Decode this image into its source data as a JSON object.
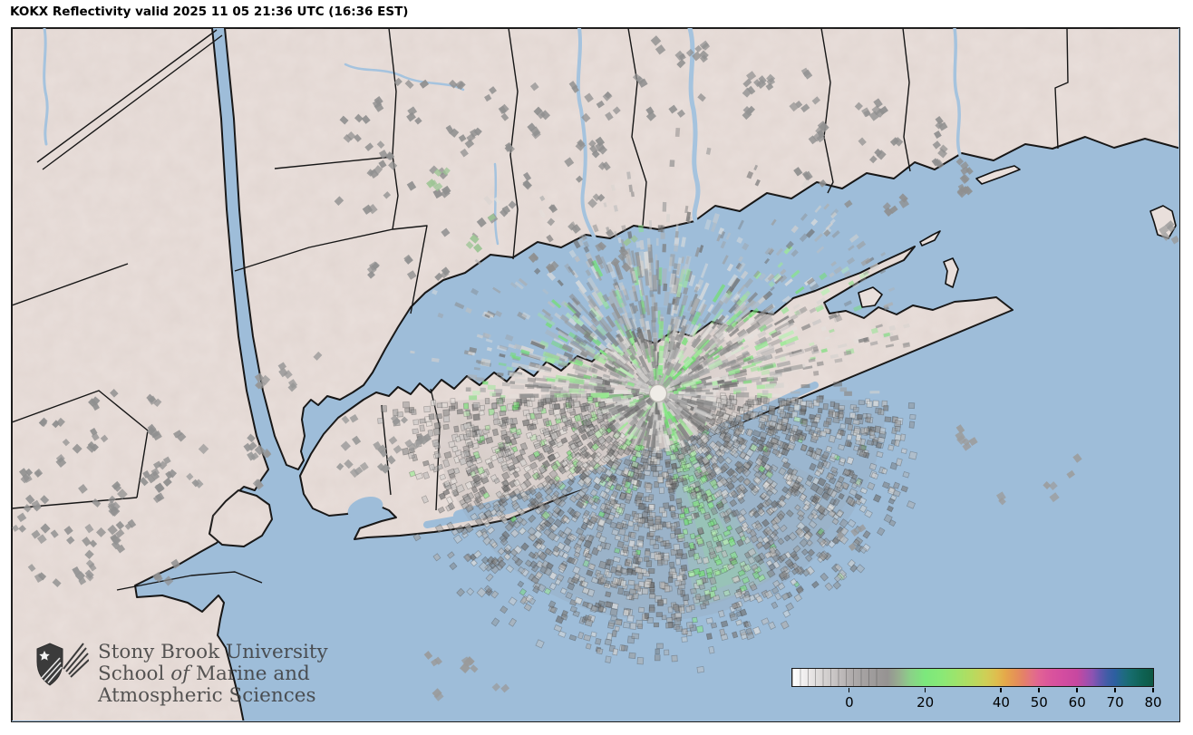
{
  "header": {
    "title": "KOKX Reflectivity valid 2025 11 05 21:36 UTC (16:36 EST)"
  },
  "branding": {
    "line1": "Stony Brook University",
    "line2_prefix": "School ",
    "line2_italic": "of",
    "line2_suffix": " Marine and",
    "line3": "Atmospheric Sciences"
  },
  "colorbar": {
    "min": -15,
    "max": 80,
    "ticks": [
      {
        "value": 0,
        "label": "0"
      },
      {
        "value": 20,
        "label": "20"
      },
      {
        "value": 40,
        "label": "40"
      },
      {
        "value": 50,
        "label": "50"
      },
      {
        "value": 60,
        "label": "60"
      },
      {
        "value": 70,
        "label": "70"
      },
      {
        "value": 80,
        "label": "80"
      }
    ],
    "stops": [
      {
        "value": -15,
        "color": "#ffffff"
      },
      {
        "value": -11,
        "color": "#eceaea"
      },
      {
        "value": -7,
        "color": "#d8d5d4"
      },
      {
        "value": -3,
        "color": "#c3bfbf"
      },
      {
        "value": 0,
        "color": "#b2aeae"
      },
      {
        "value": 5,
        "color": "#a19e9e"
      },
      {
        "value": 10,
        "color": "#969392"
      },
      {
        "value": 13,
        "color": "#97ad90"
      },
      {
        "value": 16,
        "color": "#8bd088"
      },
      {
        "value": 20,
        "color": "#7ce87c"
      },
      {
        "value": 24,
        "color": "#88e977"
      },
      {
        "value": 28,
        "color": "#9ce46c"
      },
      {
        "value": 32,
        "color": "#b4dc60"
      },
      {
        "value": 36,
        "color": "#cfcf56"
      },
      {
        "value": 39,
        "color": "#e0bc4e"
      },
      {
        "value": 41,
        "color": "#e5a94a"
      },
      {
        "value": 44,
        "color": "#e59058"
      },
      {
        "value": 46,
        "color": "#e48069"
      },
      {
        "value": 48,
        "color": "#e37283"
      },
      {
        "value": 50,
        "color": "#e16394"
      },
      {
        "value": 53,
        "color": "#da549c"
      },
      {
        "value": 56,
        "color": "#d44da0"
      },
      {
        "value": 60,
        "color": "#c748a0"
      },
      {
        "value": 62,
        "color": "#ab4daa"
      },
      {
        "value": 64,
        "color": "#8d53b2"
      },
      {
        "value": 66,
        "color": "#6157ae"
      },
      {
        "value": 68,
        "color": "#3f5da6"
      },
      {
        "value": 70,
        "color": "#2c5fa0"
      },
      {
        "value": 72,
        "color": "#206a84"
      },
      {
        "value": 74,
        "color": "#176c6e"
      },
      {
        "value": 77,
        "color": "#0f6355"
      },
      {
        "value": 80,
        "color": "#0d5844"
      }
    ]
  },
  "map": {
    "water_color": "#9ebdd9",
    "land_color": "#e9dfdb",
    "coast_color": "#111111",
    "radar_marker_color": "#efece7"
  }
}
